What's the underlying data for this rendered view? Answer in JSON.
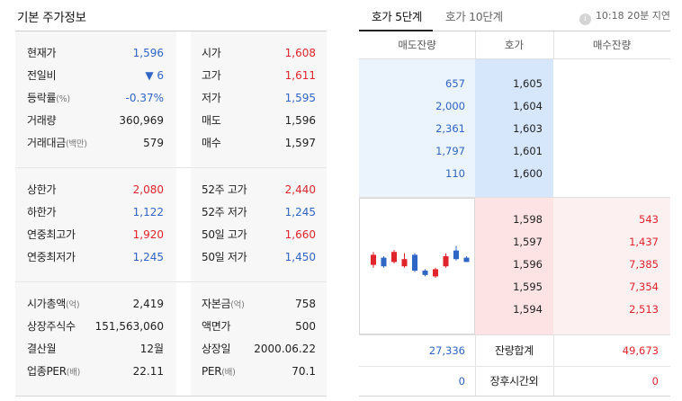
{
  "left": {
    "title": "기본 주가정보",
    "section1": [
      {
        "label": "현재가",
        "value": "1,596",
        "value_color": "down",
        "label2": "시가",
        "value2": "1,608",
        "value2_color": "up"
      },
      {
        "label": "전일비",
        "value": "▼ 6",
        "value_color": "down",
        "label2": "고가",
        "value2": "1,611",
        "value2_color": "up"
      },
      {
        "label": "등락률",
        "label_note": "(%)",
        "value": "-0.37%",
        "value_color": "down",
        "label2": "저가",
        "value2": "1,595",
        "value2_color": "down"
      },
      {
        "label": "거래량",
        "value": "360,969",
        "value_color": "flat",
        "label2": "매도",
        "value2": "1,596",
        "value2_color": "flat"
      },
      {
        "label": "거래대금",
        "label_note": "(백만)",
        "value": "579",
        "value_color": "flat",
        "label2": "매수",
        "value2": "1,597",
        "value2_color": "flat"
      }
    ],
    "section2": [
      {
        "label": "상한가",
        "value": "2,080",
        "value_color": "up",
        "label2": "52주 고가",
        "value2": "2,440",
        "value2_color": "up"
      },
      {
        "label": "하한가",
        "value": "1,122",
        "value_color": "down",
        "label2": "52주 저가",
        "value2": "1,245",
        "value2_color": "down"
      },
      {
        "label": "연중최고가",
        "value": "1,920",
        "value_color": "up",
        "label2": "50일 고가",
        "value2": "1,660",
        "value2_color": "up"
      },
      {
        "label": "연중최저가",
        "value": "1,245",
        "value_color": "down",
        "label2": "50일 저가",
        "value2": "1,450",
        "value2_color": "down"
      }
    ],
    "section3": [
      {
        "label": "시가총액",
        "label_note": "(억)",
        "value": "2,419",
        "value_color": "flat",
        "label2": "자본금",
        "label2_note": "(억)",
        "value2": "758",
        "value2_color": "flat"
      },
      {
        "label": "상장주식수",
        "value": "151,563,060",
        "value_color": "flat",
        "label2": "액면가",
        "value2": "500",
        "value2_color": "flat"
      },
      {
        "label": "결산월",
        "value": "12월",
        "value_color": "flat",
        "label2": "상장일",
        "value2": "2000.06.22",
        "value2_color": "flat"
      },
      {
        "label": "업종PER",
        "label_note": "(배)",
        "value": "22.11",
        "value_color": "flat",
        "label2": "PER",
        "label2_note": "(배)",
        "value2": "70.1",
        "value2_color": "flat"
      }
    ]
  },
  "right": {
    "tabs": [
      {
        "label": "호가 5단계",
        "active": true
      },
      {
        "label": "호가 10단계",
        "active": false
      }
    ],
    "delay_text": "10:18 20분 지연",
    "info_icon": "i",
    "headers": {
      "ask_qty": "매도잔량",
      "price": "호가",
      "bid_qty": "매수잔량"
    },
    "asks": [
      {
        "qty": "657",
        "price": "1,605"
      },
      {
        "qty": "2,000",
        "price": "1,604"
      },
      {
        "qty": "2,361",
        "price": "1,603"
      },
      {
        "qty": "1,797",
        "price": "1,601"
      },
      {
        "qty": "110",
        "price": "1,600"
      }
    ],
    "bids": [
      {
        "price": "1,598",
        "qty": "543"
      },
      {
        "price": "1,597",
        "qty": "1,437"
      },
      {
        "price": "1,596",
        "qty": "7,385"
      },
      {
        "price": "1,595",
        "qty": "7,354"
      },
      {
        "price": "1,594",
        "qty": "2,513"
      }
    ],
    "summary": {
      "total_label": "잔량합계",
      "total_ask": "27,336",
      "total_bid": "49,673",
      "after_label": "장후시간외",
      "after_ask": "0",
      "after_bid": "0"
    },
    "mini_chart": [
      {
        "dir": "up",
        "open": 2,
        "close": 5.5,
        "high": 6.5,
        "low": 1
      },
      {
        "dir": "down",
        "open": 4.5,
        "close": 1.5,
        "high": 5,
        "low": 1
      },
      {
        "dir": "up",
        "open": 3,
        "close": 6.5,
        "high": 7.2,
        "low": 2.5
      },
      {
        "dir": "up",
        "open": 1.5,
        "close": 4,
        "high": 6,
        "low": 1
      },
      {
        "dir": "down",
        "open": 5.5,
        "close": 0,
        "high": 6,
        "low": -0.5
      },
      {
        "dir": "down",
        "open": 0,
        "close": -1.5,
        "high": 0.5,
        "low": -2
      },
      {
        "dir": "up",
        "open": -2,
        "close": 0.5,
        "high": 1,
        "low": -2.5
      },
      {
        "dir": "up",
        "open": 1.5,
        "close": 5,
        "high": 6,
        "low": 1
      },
      {
        "dir": "down",
        "open": 7,
        "close": 4,
        "high": 8.5,
        "low": 3.5
      },
      {
        "dir": "down",
        "open": 4.5,
        "close": 3,
        "high": 5,
        "low": 3
      }
    ],
    "colors": {
      "up": "#e0242b",
      "down": "#2f65c4"
    }
  }
}
